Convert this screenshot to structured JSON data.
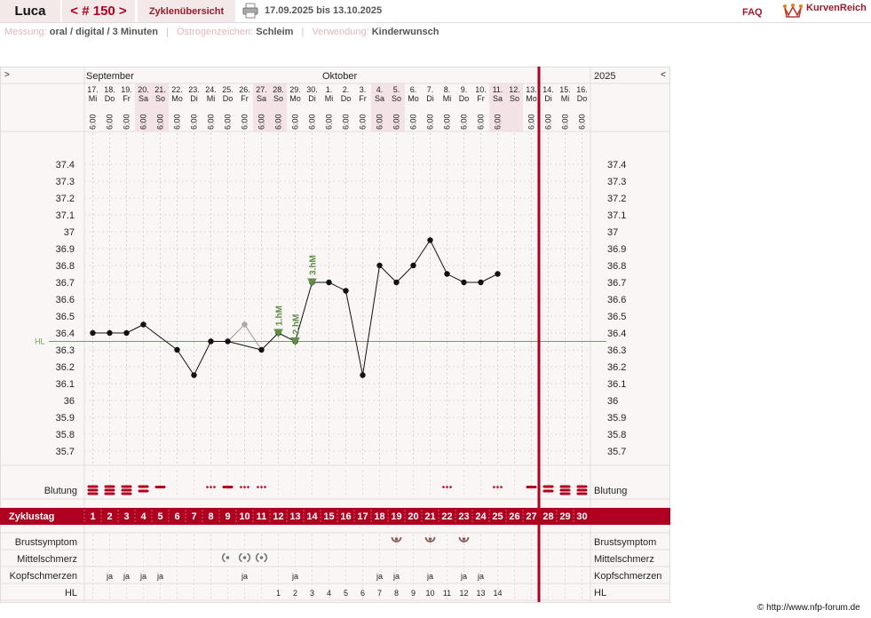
{
  "header": {
    "user": "Luca",
    "cycle_nav": "< # 150 >",
    "cycle_overview": "Zyklenübersicht",
    "date_range": "17.09.2025 bis 13.10.2025",
    "faq": "FAQ",
    "logo": "KurvenReich"
  },
  "meta": {
    "measure_label": "Messung:",
    "measure_value": "oral / digital / 3 Minuten",
    "estrogen_label": "Östrogenzeichen:",
    "estrogen_value": "Schleim",
    "use_label": "Verwendung:",
    "use_value": "Kinderwunsch"
  },
  "nav": {
    "left": ">",
    "right": "<"
  },
  "months": [
    {
      "label": "September",
      "col": 0
    },
    {
      "label": "Oktober",
      "col": 14
    }
  ],
  "year": "2025",
  "days": [
    {
      "date": "17.",
      "wd": "Mi",
      "time": "6:00"
    },
    {
      "date": "18.",
      "wd": "Do",
      "time": "6:00"
    },
    {
      "date": "19.",
      "wd": "Fr",
      "time": "6:00"
    },
    {
      "date": "20.",
      "wd": "Sa",
      "time": "6:00"
    },
    {
      "date": "21.",
      "wd": "So",
      "time": "6:00"
    },
    {
      "date": "22.",
      "wd": "Mo",
      "time": "6:00"
    },
    {
      "date": "23.",
      "wd": "Di",
      "time": "6:00"
    },
    {
      "date": "24.",
      "wd": "Mi",
      "time": "6:00"
    },
    {
      "date": "25.",
      "wd": "Do",
      "time": "6:00"
    },
    {
      "date": "26.",
      "wd": "Fr",
      "time": "6:00"
    },
    {
      "date": "27.",
      "wd": "Sa",
      "time": "6:00"
    },
    {
      "date": "28.",
      "wd": "So",
      "time": "6:00"
    },
    {
      "date": "29.",
      "wd": "Mo",
      "time": "6:00"
    },
    {
      "date": "30.",
      "wd": "Di",
      "time": "6:00"
    },
    {
      "date": "1.",
      "wd": "Mi",
      "time": "6:00"
    },
    {
      "date": "2.",
      "wd": "Do",
      "time": "6:00"
    },
    {
      "date": "3.",
      "wd": "Fr",
      "time": "6:00"
    },
    {
      "date": "4.",
      "wd": "Sa",
      "time": "6:00"
    },
    {
      "date": "5.",
      "wd": "So",
      "time": "6:00"
    },
    {
      "date": "6.",
      "wd": "Mo",
      "time": "6:00"
    },
    {
      "date": "7.",
      "wd": "Di",
      "time": "6:00"
    },
    {
      "date": "8.",
      "wd": "Mi",
      "time": "6:00"
    },
    {
      "date": "9.",
      "wd": "Do",
      "time": "6:00"
    },
    {
      "date": "10.",
      "wd": "Fr",
      "time": "6:00"
    },
    {
      "date": "11.",
      "wd": "Sa",
      "time": "6:00"
    },
    {
      "date": "12.",
      "wd": "So",
      "time": ""
    },
    {
      "date": "13.",
      "wd": "Mo",
      "time": "6:00"
    },
    {
      "date": "14.",
      "wd": "Di",
      "time": "6:00"
    },
    {
      "date": "15.",
      "wd": "Mi",
      "time": "6:00"
    },
    {
      "date": "16.",
      "wd": "Do",
      "time": "6:00"
    }
  ],
  "chart_data": {
    "type": "line",
    "title": "",
    "ylim": [
      35.7,
      37.4
    ],
    "yticks": [
      "37.4",
      "37.3",
      "37.2",
      "37.1",
      "37",
      "36.9",
      "36.8",
      "36.7",
      "36.6",
      "36.5",
      "36.4",
      "36.3",
      "36.2",
      "36.1",
      "36",
      "35.9",
      "35.8",
      "35.7"
    ],
    "cycle_days": [
      1,
      2,
      3,
      4,
      5,
      6,
      7,
      8,
      9,
      10,
      11,
      12,
      13,
      14,
      15,
      16,
      17,
      18,
      19,
      20,
      21,
      22,
      23,
      24,
      25,
      26,
      27,
      28,
      29,
      30
    ],
    "temperatures": [
      36.4,
      36.4,
      36.4,
      36.45,
      null,
      36.3,
      36.15,
      36.35,
      36.35,
      36.45,
      36.3,
      36.4,
      36.35,
      36.7,
      36.7,
      36.65,
      36.15,
      36.8,
      36.7,
      36.8,
      36.95,
      36.75,
      36.7,
      36.7,
      36.75,
      null,
      null,
      null,
      null,
      null
    ],
    "excluded_day": 10,
    "hl_value": 36.35,
    "hl_label": "HL",
    "markers": [
      {
        "day": 12,
        "label": "1.hM"
      },
      {
        "day": 13,
        "label": "2.hM"
      },
      {
        "day": 14,
        "label": "3.hM"
      }
    ],
    "current_day_after": 27,
    "bleeding": [
      "heavy",
      "heavy",
      "heavy",
      "medium",
      "light",
      "",
      "",
      "spot",
      "light",
      "spot",
      "spot",
      "",
      "",
      "",
      "",
      "",
      "",
      "",
      "",
      "",
      "",
      "spot",
      "",
      "",
      "spot",
      "",
      "light",
      "medium",
      "heavy",
      "heavy"
    ],
    "breast_symptom_days": [
      19,
      21,
      23
    ],
    "mittelschmerz": [
      {
        "day": 9,
        "type": "left"
      },
      {
        "day": 10,
        "type": "both"
      },
      {
        "day": 11,
        "type": "both"
      }
    ],
    "headache": [
      "",
      "ja",
      "ja",
      "ja",
      "ja",
      "",
      "",
      "",
      "",
      "ja",
      "",
      "",
      "ja",
      "",
      "",
      "",
      "",
      "ja",
      "ja",
      "",
      "ja",
      "",
      "ja",
      "ja",
      "",
      "",
      "",
      "",
      "",
      ""
    ],
    "hl_row": [
      "",
      "",
      "",
      "",
      "",
      "",
      "",
      "",
      "",
      "",
      "",
      "1",
      "2",
      "3",
      "4",
      "5",
      "6",
      "7",
      "8",
      "9",
      "10",
      "11",
      "12",
      "13",
      "14",
      "",
      "",
      "",
      "",
      ""
    ]
  },
  "rows": {
    "bleeding": "Blutung",
    "cycle_day": "Zyklustag",
    "breast": "Brustsymptom",
    "mittelschmerz": "Mittelschmerz",
    "headache": "Kopfschmerzen",
    "hl": "HL"
  },
  "colors": {
    "accent": "#b00020",
    "weekend": "#f3e3e6",
    "hl_line": "#6fa055",
    "marker": "#5f8f44",
    "breast": "#8a5a5a",
    "mittelschmerz": "#777777"
  },
  "footer": "© http://www.nfp-forum.de"
}
